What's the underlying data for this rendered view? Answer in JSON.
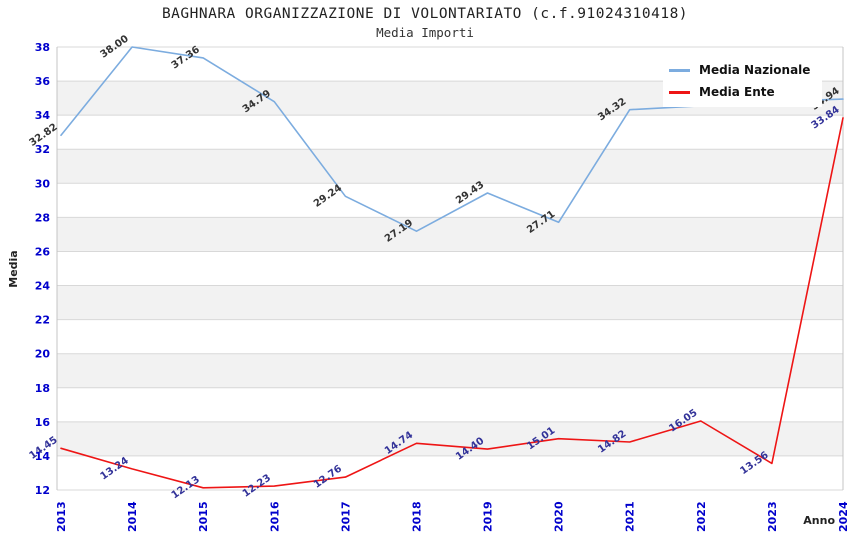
{
  "chart_data": {
    "type": "line",
    "title": "BAGHNARA ORGANIZZAZIONE DI VOLONTARIATO (c.f.91024310418)",
    "subtitle": "Media Importi",
    "xlabel": "Anno",
    "ylabel": "Media",
    "x": [
      "2013",
      "2014",
      "2015",
      "2016",
      "2017",
      "2018",
      "2019",
      "2020",
      "2021",
      "2022",
      "2023",
      "2024"
    ],
    "ylim": [
      12,
      38
    ],
    "ytick_step": 2,
    "grid": "on",
    "legend_position": "top-right",
    "series": [
      {
        "name": "Media Nazionale",
        "color": "#7cacdf",
        "label_color": "#333333",
        "values": [
          32.82,
          38.0,
          37.36,
          34.79,
          29.24,
          27.19,
          29.43,
          27.71,
          34.32,
          34.55,
          34.8,
          34.94
        ],
        "point_labels": [
          "32.82",
          "38.00",
          "37.36",
          "34.79",
          "29.24",
          "27.19",
          "29.43",
          "27.71",
          "34.32",
          "",
          "",
          "34.94"
        ]
      },
      {
        "name": "Media Ente",
        "color": "#ee1515",
        "label_color": "#333399",
        "values": [
          14.45,
          13.24,
          12.13,
          12.23,
          12.76,
          14.74,
          14.4,
          15.01,
          14.82,
          16.05,
          13.56,
          33.84
        ],
        "point_labels": [
          "14.45",
          "13.24",
          "12.13",
          "12.23",
          "12.76",
          "14.74",
          "14.40",
          "15.01",
          "14.82",
          "16.05",
          "13.56",
          "33.84"
        ]
      }
    ],
    "colors": {
      "tick_label": "#0000cc",
      "grid_line": "#d8d8d8",
      "band_fill": "#f2f2f2",
      "axis_border": "#c4c4c4"
    }
  }
}
